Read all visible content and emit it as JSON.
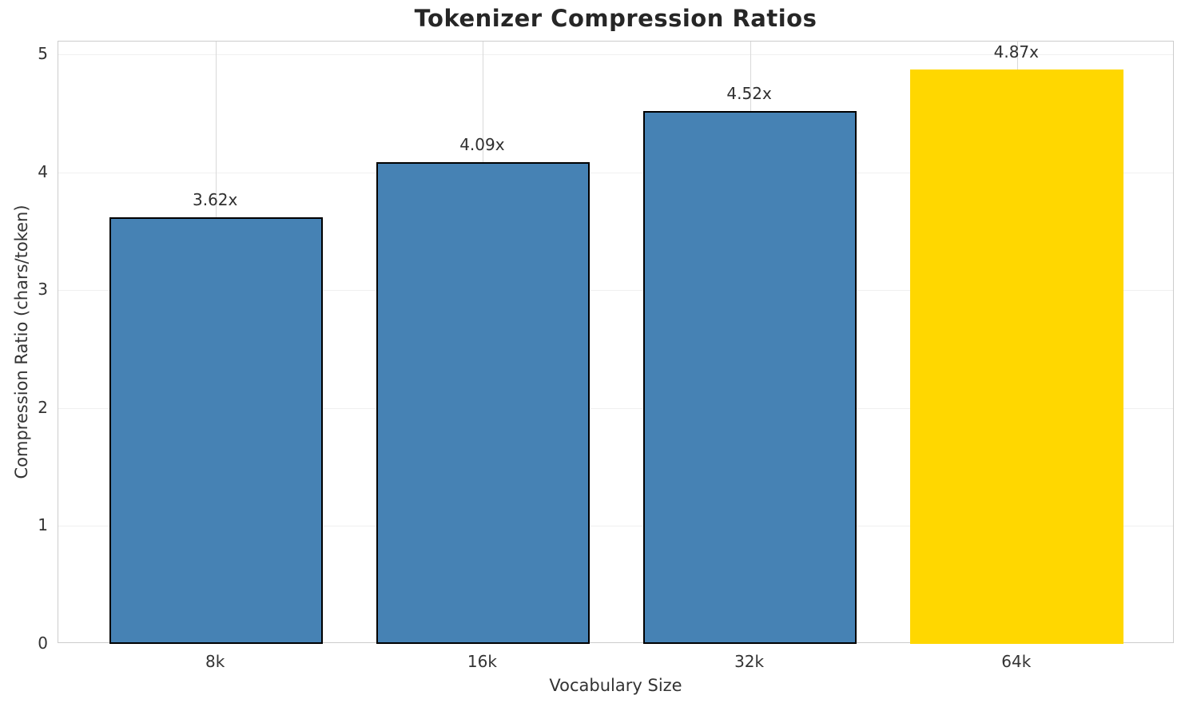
{
  "chart_data": {
    "type": "bar",
    "title": "Tokenizer Compression Ratios",
    "xlabel": "Vocabulary Size",
    "ylabel": "Compression Ratio (chars/token)",
    "categories": [
      "8k",
      "16k",
      "32k",
      "64k"
    ],
    "values": [
      3.62,
      4.09,
      4.52,
      4.87
    ],
    "bar_labels": [
      "3.62x",
      "4.09x",
      "4.52x",
      "4.87x"
    ],
    "bar_colors": [
      "#4682b4",
      "#4682b4",
      "#4682b4",
      "#ffd700"
    ],
    "bar_edge_colors": [
      "#000000",
      "#000000",
      "#000000",
      "none"
    ],
    "yticks": [
      "0",
      "1",
      "2",
      "3",
      "4",
      "5"
    ],
    "ylim": [
      0,
      5.11
    ],
    "xlim": [
      -0.59,
      3.59
    ],
    "bar_width": 0.8,
    "grid": "both",
    "legend": "none",
    "colors": {
      "series": "#4682b4",
      "highlight": "#ffd700",
      "bar_edge": "#000000",
      "spine": "#cccccc",
      "grid_horizontal": "#f0f0f0",
      "grid_vertical": "#d9d9d9",
      "title_text": "#262626",
      "tick_text": "#333333"
    }
  }
}
